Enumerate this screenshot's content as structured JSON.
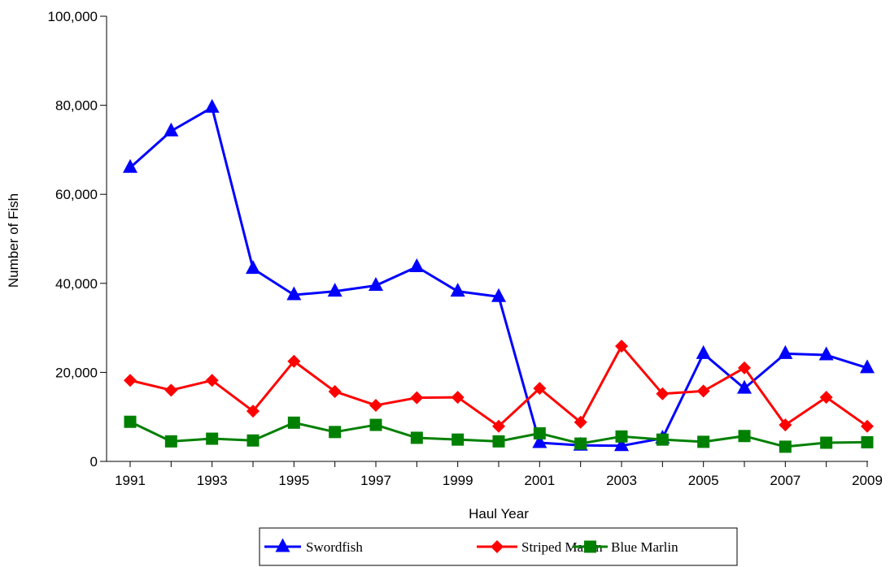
{
  "chart_data": {
    "type": "line",
    "title": "",
    "xlabel": "Haul Year",
    "ylabel": "Number of Fish",
    "x": [
      1991,
      1992,
      1993,
      1994,
      1995,
      1996,
      1997,
      1998,
      1999,
      2000,
      2001,
      2002,
      2003,
      2004,
      2005,
      2006,
      2007,
      2008,
      2009
    ],
    "xlim": [
      1991,
      2009
    ],
    "ylim": [
      0,
      100000
    ],
    "x_ticks": [
      1991,
      1993,
      1995,
      1997,
      1999,
      2001,
      2003,
      2005,
      2007,
      2009
    ],
    "x_tick_labels": [
      "1991",
      "1993",
      "1995",
      "1997",
      "1999",
      "2001",
      "2003",
      "2005",
      "2007",
      "2009"
    ],
    "y_ticks": [
      0,
      20000,
      40000,
      60000,
      80000,
      100000
    ],
    "y_tick_labels": [
      "0",
      "20,000",
      "40,000",
      "60,000",
      "80,000",
      "100,000"
    ],
    "grid": false,
    "legend_position": "bottom",
    "series": [
      {
        "name": "Swordfish",
        "color": "#0000ff",
        "marker": "triangle",
        "values": [
          66000,
          74200,
          79500,
          43300,
          37400,
          38200,
          39500,
          43700,
          38200,
          37000,
          4200,
          3600,
          3500,
          5200,
          24200,
          16400,
          24200,
          23900,
          21000
        ]
      },
      {
        "name": "Striped Marlin",
        "color": "#ff0000",
        "marker": "diamond",
        "values": [
          18200,
          16000,
          18200,
          11300,
          22500,
          15700,
          12600,
          14300,
          14400,
          7900,
          16400,
          8800,
          25900,
          15200,
          15800,
          21000,
          8200,
          14400,
          7900
        ]
      },
      {
        "name": "Blue Marlin",
        "color": "#008000",
        "marker": "square",
        "values": [
          8900,
          4500,
          5100,
          4700,
          8700,
          6600,
          8200,
          5300,
          4900,
          4500,
          6300,
          4000,
          5600,
          4900,
          4400,
          5700,
          3300,
          4200,
          4300
        ]
      }
    ]
  }
}
